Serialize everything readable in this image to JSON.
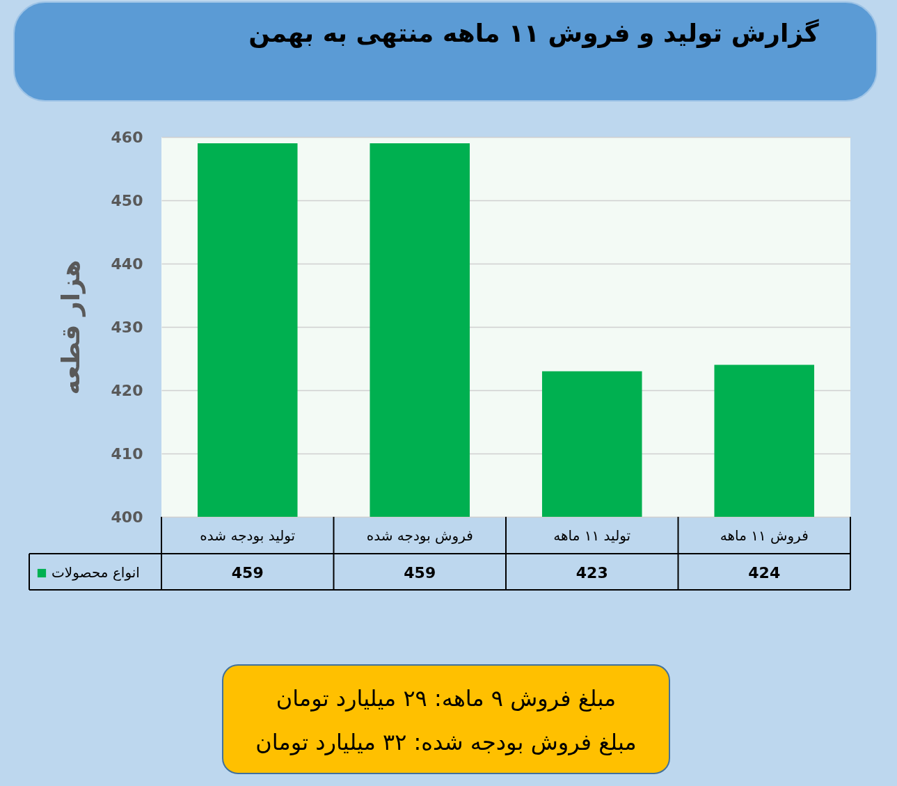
{
  "chart_data": {
    "type": "bar",
    "title": "گزارش تولید و فروش ۱۱ ماهه منتهی به بهمن",
    "ylabel": "هزار قطعه",
    "categories": [
      "تولید بودجه شده",
      "فروش بودجه شده",
      "تولید ۱۱ ماهه",
      "فروش ۱۱ ماهه"
    ],
    "series": [
      {
        "name": "انواع محصولات",
        "color": "#00b050",
        "values": [
          459,
          459,
          423,
          424
        ]
      }
    ],
    "ylim": [
      400,
      460
    ],
    "yticks": [
      400,
      410,
      420,
      430,
      440,
      450,
      460
    ],
    "grid": "y",
    "legend": "bottom left",
    "data_labels": true,
    "annotations": [
      "مبلغ فروش ۹ ماهه: ۲۹ میلیارد تومان",
      "مبلغ فروش بودجه شده: ۳۲ میلیارد تومان"
    ]
  }
}
